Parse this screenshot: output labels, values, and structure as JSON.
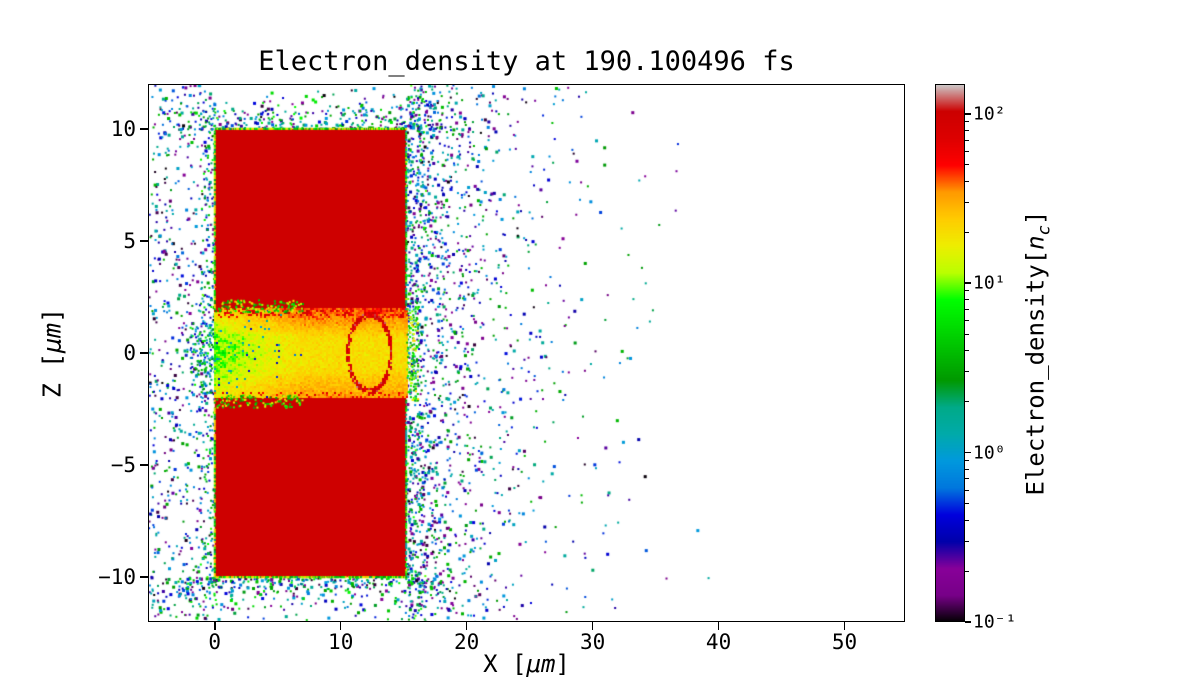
{
  "figure": {
    "background": "#ffffff"
  },
  "chart_data": {
    "type": "heatmap",
    "title": "Electron_density at 190.100496 fs",
    "timestamp_fs": 190.100496,
    "xlabel": {
      "prefix": "X [",
      "math": "μm",
      "suffix": "]"
    },
    "ylabel": {
      "prefix": "Z [",
      "math": "μm",
      "suffix": "]"
    },
    "xlim": [
      -5.3,
      54.8
    ],
    "ylim": [
      -12,
      12
    ],
    "xticks": [
      0,
      10,
      20,
      30,
      40,
      50
    ],
    "xtick_labels": [
      "0",
      "10",
      "20",
      "30",
      "40",
      "50"
    ],
    "yticks": [
      -10,
      -5,
      0,
      5,
      10
    ],
    "ytick_labels": [
      "−10",
      "−5",
      "0",
      "5",
      "10"
    ],
    "grid": false,
    "colorbar": {
      "label": {
        "prefix": "Electron_density[",
        "var": "n",
        "sub": "c",
        "suffix": "]"
      },
      "scale": "log",
      "vmin": 0.1,
      "vmax": 150,
      "tick_values": [
        100,
        10,
        1,
        0.1
      ],
      "tick_labels": [
        "10²",
        "10¹",
        "10⁰",
        "10⁻¹"
      ],
      "colormap": "nipy_spectral",
      "stops": [
        "#000000",
        "#770088",
        "#880099",
        "#0000AA",
        "#0000DD",
        "#0077DD",
        "#0099DD",
        "#00AAAA",
        "#00AA88",
        "#009900",
        "#00BB00",
        "#00DD00",
        "#00FF00",
        "#BBFF00",
        "#EEEE00",
        "#FFCC00",
        "#FF9900",
        "#FF0000",
        "#DD0000",
        "#CC0000",
        "#CCCCCC"
      ]
    },
    "regions": {
      "target_slabs": [
        {
          "x": [
            0,
            15.2
          ],
          "z": [
            2,
            10
          ],
          "density": 100
        },
        {
          "x": [
            0,
            15.2
          ],
          "z": [
            -10,
            -2
          ],
          "density": 100
        }
      ],
      "channel": {
        "x": [
          0,
          15.2
        ],
        "z": [
          -2,
          2
        ],
        "density_range": [
          3,
          60
        ],
        "description": "laser-drilled channel: green turbulent filaments on left, yellow-orange plasma on right"
      },
      "arc": {
        "center_x": 12.3,
        "center_z": 0,
        "radius": 1.7,
        "density": 85
      },
      "scatter_halo": {
        "x_extent": [
          -5.3,
          40
        ],
        "density_range": [
          0.1,
          8
        ],
        "description": "sparse expelled low-density electrons surrounding target"
      }
    }
  }
}
